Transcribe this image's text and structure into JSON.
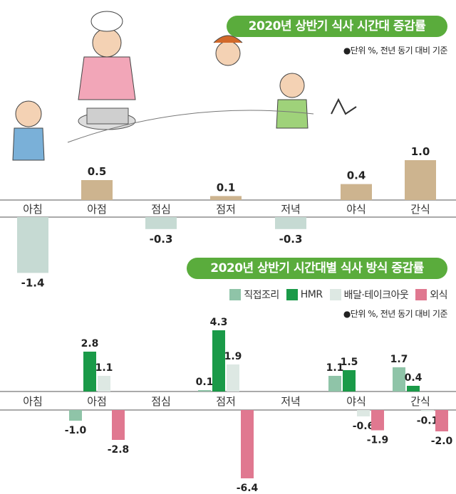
{
  "chart_data": [
    {
      "type": "bar",
      "title": "2020년 상반기 식사 시간대 증감률",
      "note": "●단위 %, 전년 동기 대비 기준",
      "categories": [
        "아침",
        "아점",
        "점심",
        "점저",
        "저녁",
        "야식",
        "간식"
      ],
      "values": [
        -1.4,
        0.5,
        -0.3,
        0.1,
        -0.3,
        0.4,
        1.0
      ],
      "colors": {
        "positive": "#cdb48f",
        "negative": "#c6dad3"
      }
    },
    {
      "type": "bar",
      "title": "2020년 상반기 시간대별 식사 방식 증감률",
      "note": "●단위 %, 전년 동기 대비 기준",
      "legend_position": "top-right",
      "categories": [
        "아침",
        "아점",
        "점심",
        "점저",
        "저녁",
        "야식",
        "간식"
      ],
      "series": [
        {
          "name": "직접조리",
          "color": "#8fc4a8",
          "values": [
            null,
            -1.0,
            null,
            0.1,
            null,
            1.1,
            1.7
          ]
        },
        {
          "name": "HMR",
          "color": "#1a9a48",
          "values": [
            null,
            2.8,
            null,
            4.3,
            null,
            1.5,
            0.4
          ]
        },
        {
          "name": "배달·테이크아웃",
          "color": "#dde8e3",
          "values": [
            null,
            1.1,
            null,
            1.9,
            null,
            -0.6,
            -0.1
          ]
        },
        {
          "name": "외식",
          "color": "#e07890",
          "values": [
            null,
            -2.8,
            null,
            -6.4,
            null,
            -1.9,
            -2.0
          ]
        }
      ]
    }
  ],
  "illustration": "family-cooking-cartoon"
}
